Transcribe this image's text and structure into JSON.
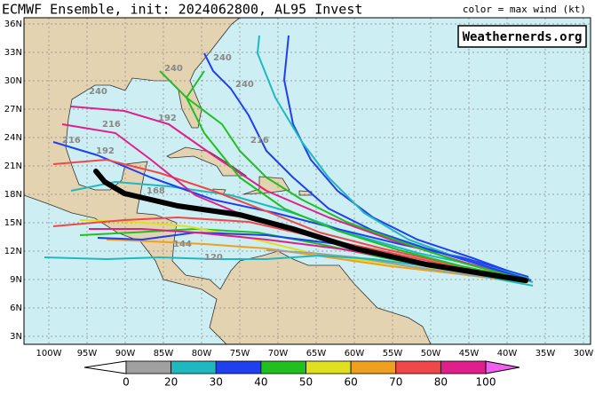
{
  "header": {
    "title": "ECMWF Ensemble, init: 2024062800, AL95 Invest",
    "legend_note": "color = max wind (kt)"
  },
  "watermark": "Weathernerds.org",
  "lat_labels": [
    "36N",
    "33N",
    "30N",
    "27N",
    "24N",
    "21N",
    "18N",
    "15N",
    "12N",
    "9N",
    "6N",
    "3N"
  ],
  "lon_labels": [
    "100W",
    "95W",
    "90W",
    "85W",
    "80W",
    "75W",
    "70W",
    "65W",
    "60W",
    "55W",
    "50W",
    "45W",
    "40W",
    "35W",
    "30W"
  ],
  "colorbar": {
    "labels": [
      0,
      20,
      30,
      40,
      50,
      60,
      70,
      80,
      100
    ],
    "colors": [
      "#a0a0a0",
      "#20b8c0",
      "#2040f0",
      "#20c020",
      "#e0e020",
      "#f0a020",
      "#f04848",
      "#e0208a"
    ]
  },
  "track_labels": [
    "240",
    "240",
    "240",
    "240",
    "216",
    "216",
    "192",
    "192",
    "168",
    "144",
    "120",
    "216"
  ]
}
